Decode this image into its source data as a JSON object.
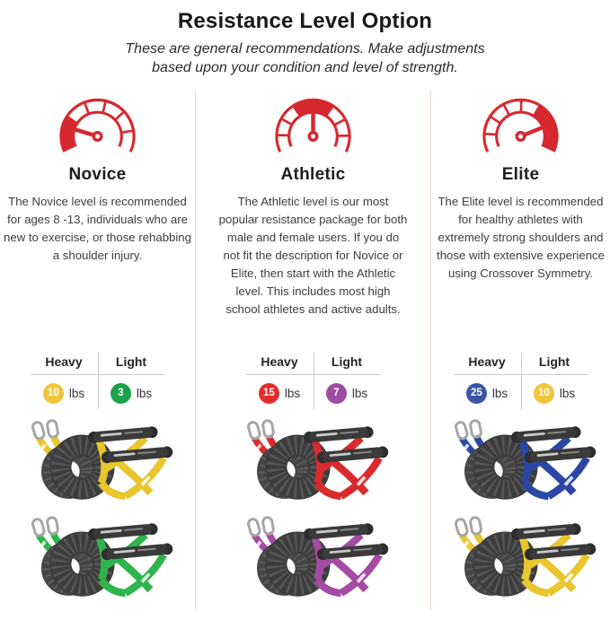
{
  "header": {
    "title": "Resistance Level Option",
    "subtitle": "These are general recommendations. Make adjustments based upon your condition and level of strength."
  },
  "weight_table": {
    "heavy_label": "Heavy",
    "light_label": "Light",
    "unit": "lbs"
  },
  "levels": [
    {
      "name": "Novice",
      "gauge": "low",
      "description": "The Novice level is recommended for ages 8 -13, individuals who are new to exercise, or those rehabbing a shoulder injury.",
      "heavy": {
        "value": "10",
        "color": "#f1c53b"
      },
      "light": {
        "value": "3",
        "color": "#1ba24d"
      },
      "products": [
        {
          "label": "heavy-band-set",
          "strap_color": "#e9c62e"
        },
        {
          "label": "light-band-set",
          "strap_color": "#2fb34c"
        }
      ]
    },
    {
      "name": "Athletic",
      "gauge": "mid",
      "description": "The Athletic level is our most popular resistance package for both male and female users. If you do not fit the description for Novice or Elite, then start with the Athletic level. This includes most high school athletes and active adults.",
      "heavy": {
        "value": "15",
        "color": "#e32b2e"
      },
      "light": {
        "value": "7",
        "color": "#9c4da0"
      },
      "products": [
        {
          "label": "heavy-band-set",
          "strap_color": "#d92a2c"
        },
        {
          "label": "light-band-set",
          "strap_color": "#a44ba4"
        }
      ]
    },
    {
      "name": "Elite",
      "gauge": "high",
      "description": "The Elite level is recommended for healthy athletes with extremely strong shoulders and those with extensive experience using Crossover Symmetry.",
      "heavy": {
        "value": "25",
        "color": "#3b55a5"
      },
      "light": {
        "value": "10",
        "color": "#f1c53b"
      },
      "products": [
        {
          "label": "heavy-band-set",
          "strap_color": "#2c46a3"
        },
        {
          "label": "light-band-set",
          "strap_color": "#e9c62e"
        }
      ]
    }
  ],
  "colors": {
    "accent": "#d7282f",
    "column_divider": "#e9d9d4",
    "table_line": "#cccccc"
  }
}
